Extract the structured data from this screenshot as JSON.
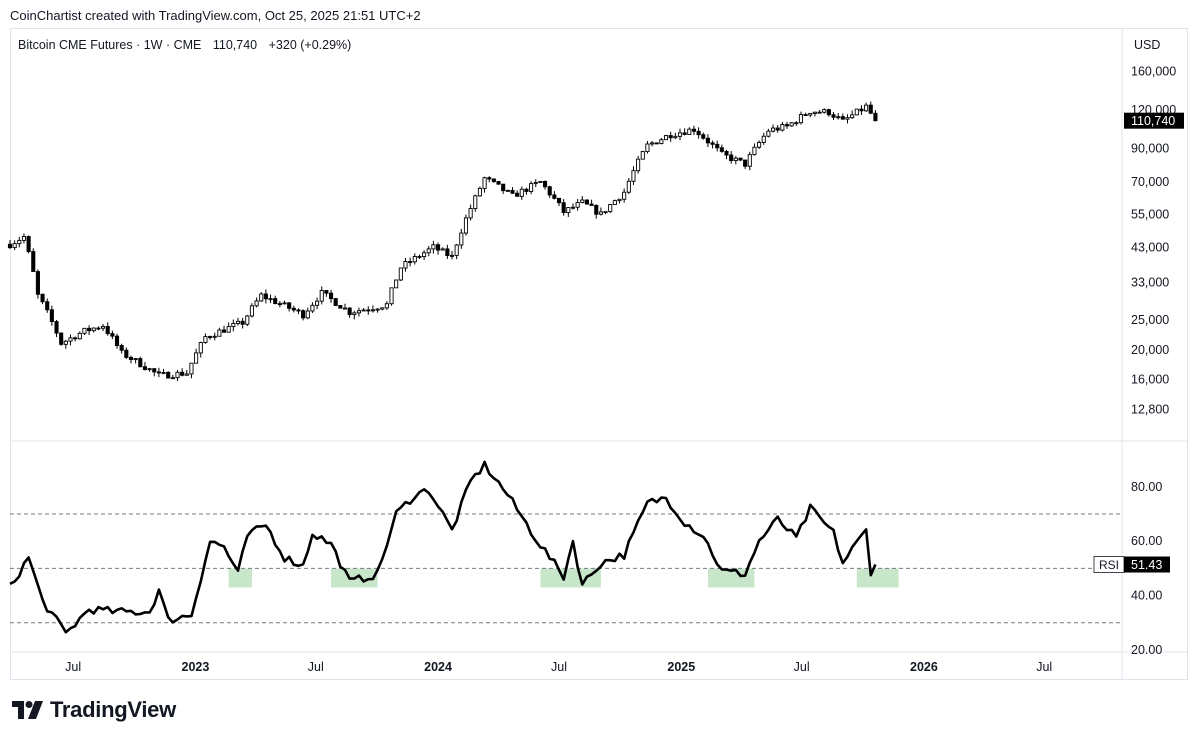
{
  "header": {
    "attribution": "CoinChartist created with TradingView.com, Oct 25, 2025 21:51 UTC+2",
    "symbol_line": "Bitcoin CME Futures · 1W · CME",
    "last_price": "110,740",
    "change": "+320 (+0.29%)",
    "currency": "USD"
  },
  "brand": {
    "name": "TradingView",
    "logo_icon": "tradingview-logo-icon"
  },
  "colors": {
    "up_fill": "#ffffff",
    "down_fill": "#000000",
    "candle_stroke": "#000000",
    "rsi_line": "#000000",
    "oversold_zone": "#c8e6c9",
    "price_tag": "#000000"
  },
  "chart_data": [
    {
      "type": "candlestick",
      "title": "Bitcoin CME Futures · 1W · CME",
      "y_scale": "log",
      "ylim": [
        10500,
        185000
      ],
      "y_ticks": [
        "160,000",
        "120,000",
        "90,000",
        "70,000",
        "55,000",
        "43,000",
        "33,000",
        "25,000",
        "20,000",
        "16,000",
        "12,800"
      ],
      "y_tick_values": [
        160000,
        120000,
        90000,
        70000,
        55000,
        43000,
        33000,
        25000,
        20000,
        16000,
        12800
      ],
      "price_tag": "110,740",
      "x_start": "2022-03-28",
      "x_end": "2026-10-26",
      "x_ticks": [
        "Jul",
        "2023",
        "Jul",
        "2024",
        "Jul",
        "2025",
        "Jul",
        "2026",
        "Jul"
      ],
      "x_tick_dates": [
        "2022-07-01",
        "2023-01-01",
        "2023-07-01",
        "2024-01-01",
        "2024-07-01",
        "2025-01-01",
        "2025-07-01",
        "2026-01-01",
        "2026-07-01"
      ],
      "x_tick_bold": [
        false,
        true,
        false,
        true,
        false,
        true,
        false,
        true,
        false
      ],
      "anchors": [
        [
          "2022-03-28",
          44000
        ],
        [
          "2022-04-18",
          46500
        ],
        [
          "2022-05-09",
          30000
        ],
        [
          "2022-06-13",
          21000
        ],
        [
          "2022-07-18",
          23000
        ],
        [
          "2022-08-15",
          24000
        ],
        [
          "2022-09-12",
          19500
        ],
        [
          "2022-11-07",
          16500
        ],
        [
          "2022-12-19",
          16800
        ],
        [
          "2023-01-16",
          22000
        ],
        [
          "2023-03-13",
          24500
        ],
        [
          "2023-04-10",
          30000
        ],
        [
          "2023-06-12",
          26000
        ],
        [
          "2023-07-10",
          30500
        ],
        [
          "2023-08-21",
          26500
        ],
        [
          "2023-10-16",
          28000
        ],
        [
          "2023-11-06",
          37000
        ],
        [
          "2023-12-25",
          43000
        ],
        [
          "2024-01-22",
          40000
        ],
        [
          "2024-02-26",
          62000
        ],
        [
          "2024-03-11",
          72000
        ],
        [
          "2024-04-22",
          63000
        ],
        [
          "2024-06-03",
          70000
        ],
        [
          "2024-07-08",
          56000
        ],
        [
          "2024-08-05",
          60000
        ],
        [
          "2024-09-02",
          55000
        ],
        [
          "2024-10-07",
          65000
        ],
        [
          "2024-11-11",
          92000
        ],
        [
          "2024-12-16",
          100000
        ],
        [
          "2025-01-20",
          104000
        ],
        [
          "2025-03-03",
          86000
        ],
        [
          "2025-04-07",
          80000
        ],
        [
          "2025-05-12",
          103000
        ],
        [
          "2025-06-09",
          106000
        ],
        [
          "2025-07-14",
          119000
        ],
        [
          "2025-08-11",
          118000
        ],
        [
          "2025-09-01",
          110000
        ],
        [
          "2025-10-06",
          123000
        ],
        [
          "2025-10-20",
          110740
        ]
      ]
    },
    {
      "type": "line",
      "name": "RSI",
      "ylim": [
        20,
        95
      ],
      "y_ticks": [
        "80.00",
        "60.00",
        "40.00",
        "20.00"
      ],
      "y_tick_values": [
        80,
        60,
        40,
        20
      ],
      "levels": [
        70,
        50,
        30
      ],
      "current_label": "RSI",
      "current_value": "51.43",
      "oversold_zones": [
        [
          "2023-02-20",
          "2023-03-27"
        ],
        [
          "2023-07-24",
          "2023-10-02"
        ],
        [
          "2024-06-03",
          "2024-09-02"
        ],
        [
          "2025-02-10",
          "2025-04-21"
        ],
        [
          "2025-09-22",
          "2025-11-24"
        ]
      ],
      "anchors": [
        [
          "2022-03-28",
          43
        ],
        [
          "2022-04-25",
          54
        ],
        [
          "2022-05-16",
          38
        ],
        [
          "2022-06-20",
          26
        ],
        [
          "2022-07-25",
          35
        ],
        [
          "2022-09-05",
          34
        ],
        [
          "2022-10-24",
          34
        ],
        [
          "2022-11-07",
          42
        ],
        [
          "2022-11-21",
          31
        ],
        [
          "2022-12-26",
          33
        ],
        [
          "2023-01-23",
          60
        ],
        [
          "2023-02-13",
          58
        ],
        [
          "2023-03-06",
          48
        ],
        [
          "2023-03-20",
          62
        ],
        [
          "2023-04-17",
          66
        ],
        [
          "2023-05-15",
          54
        ],
        [
          "2023-06-12",
          51
        ],
        [
          "2023-06-26",
          63
        ],
        [
          "2023-07-24",
          59
        ],
        [
          "2023-08-21",
          45
        ],
        [
          "2023-10-02",
          48
        ],
        [
          "2023-10-30",
          70
        ],
        [
          "2023-11-27",
          77
        ],
        [
          "2023-12-18",
          79
        ],
        [
          "2024-01-22",
          64
        ],
        [
          "2024-02-19",
          82
        ],
        [
          "2024-03-11",
          88
        ],
        [
          "2024-04-15",
          77
        ],
        [
          "2024-05-06",
          69
        ],
        [
          "2024-05-27",
          61
        ],
        [
          "2024-07-08",
          47
        ],
        [
          "2024-07-22",
          60
        ],
        [
          "2024-08-05",
          44
        ],
        [
          "2024-09-02",
          52
        ],
        [
          "2024-10-07",
          55
        ],
        [
          "2024-11-11",
          74
        ],
        [
          "2024-12-09",
          76
        ],
        [
          "2025-01-06",
          67
        ],
        [
          "2025-02-03",
          62
        ],
        [
          "2025-03-03",
          49
        ],
        [
          "2025-04-07",
          48
        ],
        [
          "2025-04-28",
          60
        ],
        [
          "2025-05-26",
          68
        ],
        [
          "2025-06-23",
          61
        ],
        [
          "2025-07-14",
          72
        ],
        [
          "2025-08-18",
          63
        ],
        [
          "2025-09-01",
          52
        ],
        [
          "2025-09-15",
          57
        ],
        [
          "2025-10-06",
          64
        ],
        [
          "2025-10-13",
          49
        ],
        [
          "2025-10-20",
          51.43
        ]
      ]
    }
  ]
}
